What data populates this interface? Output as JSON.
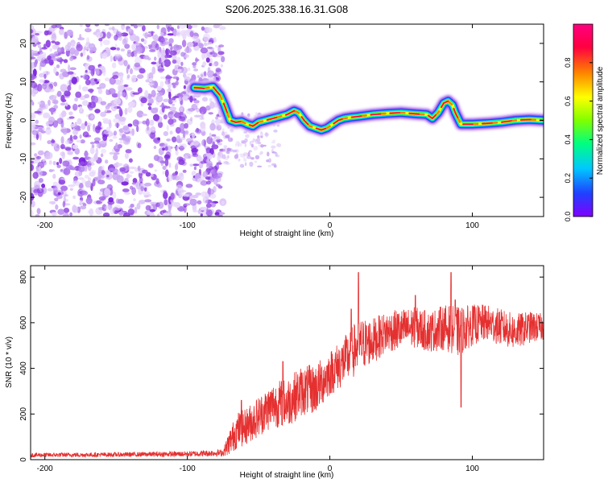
{
  "title": "S206.2025.338.16.31.G08",
  "chart_data": [
    {
      "type": "heatmap",
      "name": "spectrogram",
      "xlabel": "Height of straight line (km)",
      "ylabel": "Frequency (Hz)",
      "xlim": [
        -210,
        150
      ],
      "ylim": [
        -25,
        25
      ],
      "xticks": [
        -200,
        -100,
        0,
        100
      ],
      "yticks": [
        -20,
        -10,
        0,
        10,
        20
      ],
      "colorbar": {
        "label": "Normalized spectral amplitude",
        "range": [
          0,
          1
        ],
        "ticks": [
          "0.0",
          "0.2",
          "0.4",
          "0.6",
          "0.8"
        ],
        "colors": [
          "#8000ff",
          "#2040ff",
          "#00c8ff",
          "#00ff80",
          "#80ff00",
          "#ffff00",
          "#ff8000",
          "#ff0040",
          "#ff0080"
        ]
      },
      "noise_region_x": [
        -210,
        -75
      ],
      "ridge": {
        "x": [
          -95,
          -88,
          -82,
          -77,
          -74,
          -70,
          -66,
          -62,
          -58,
          -54,
          -50,
          -45,
          -40,
          -35,
          -30,
          -25,
          -22,
          -18,
          -14,
          -10,
          -6,
          -2,
          2,
          6,
          10,
          15,
          20,
          30,
          40,
          50,
          60,
          68,
          72,
          76,
          80,
          83,
          86,
          88,
          92,
          100,
          110,
          120,
          130,
          140,
          150
        ],
        "freq": [
          8.5,
          8.3,
          8.7,
          6.5,
          4,
          0,
          -0.5,
          -0.3,
          -1,
          -1.5,
          -0.5,
          0,
          0.5,
          1,
          1.5,
          2.5,
          2,
          0,
          -1.5,
          -2,
          -2.5,
          -2,
          -1,
          0,
          0.5,
          0.8,
          1,
          1.5,
          1.8,
          2,
          1.7,
          1.5,
          0.5,
          2,
          4.5,
          5,
          4,
          2,
          -1,
          -1,
          -0.8,
          -0.5,
          0,
          0.2,
          0
        ]
      }
    },
    {
      "type": "line",
      "name": "snr",
      "xlabel": "Height of straight line (km)",
      "ylabel": "SNR (10 * v/v)",
      "xlim": [
        -210,
        150
      ],
      "ylim": [
        0,
        850
      ],
      "xticks": [
        -200,
        -100,
        0,
        100
      ],
      "yticks": [
        0,
        200,
        400,
        600,
        800
      ],
      "color": "#e53030",
      "envelope": {
        "x": [
          -210,
          -150,
          -100,
          -75,
          -70,
          -65,
          -60,
          -50,
          -40,
          -30,
          -20,
          -10,
          0,
          10,
          20,
          30,
          40,
          50,
          60,
          70,
          80,
          90,
          100,
          110,
          120,
          130,
          140,
          150
        ],
        "mean": [
          20,
          22,
          25,
          30,
          80,
          130,
          140,
          190,
          240,
          250,
          300,
          310,
          380,
          430,
          500,
          520,
          560,
          570,
          580,
          560,
          580,
          560,
          590,
          600,
          580,
          560,
          580,
          580
        ],
        "amp": [
          10,
          10,
          12,
          15,
          60,
          80,
          80,
          90,
          100,
          110,
          110,
          110,
          100,
          110,
          120,
          100,
          90,
          90,
          90,
          90,
          100,
          110,
          90,
          80,
          80,
          80,
          70,
          60
        ]
      },
      "spikes": [
        [
          20,
          820
        ],
        [
          -33,
          430
        ],
        [
          15,
          660
        ],
        [
          85,
          820
        ],
        [
          60,
          720
        ],
        [
          88,
          700
        ],
        [
          92,
          230
        ],
        [
          -62,
          260
        ]
      ]
    }
  ]
}
